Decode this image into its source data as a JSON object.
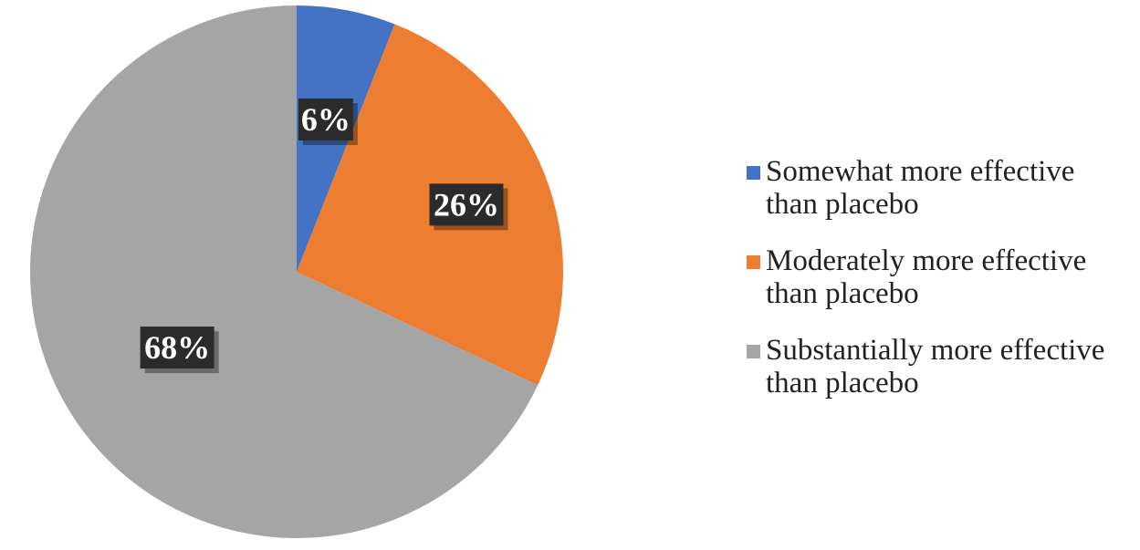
{
  "chart_data": {
    "type": "pie",
    "categories": [
      "Somewhat more effective than placebo",
      "Moderately more effective than placebo",
      "Substantially more effective than placebo"
    ],
    "values": [
      6,
      26,
      68
    ],
    "data_labels": [
      "6%",
      "26%",
      "68%"
    ],
    "colors": [
      "#4472c4",
      "#ed7d31",
      "#a5a5a5"
    ],
    "start_angle_deg": 0,
    "direction": "clockwise",
    "legend_position": "right",
    "title": ""
  },
  "legend": [
    {
      "line1": "Somewhat more effective",
      "line2": "than placebo",
      "color": "#4472c4"
    },
    {
      "line1": "Moderately more effective",
      "line2": "than placebo",
      "color": "#ed7d31"
    },
    {
      "line1": "Substantially more effective",
      "line2": "than placebo",
      "color": "#a5a5a5"
    }
  ]
}
